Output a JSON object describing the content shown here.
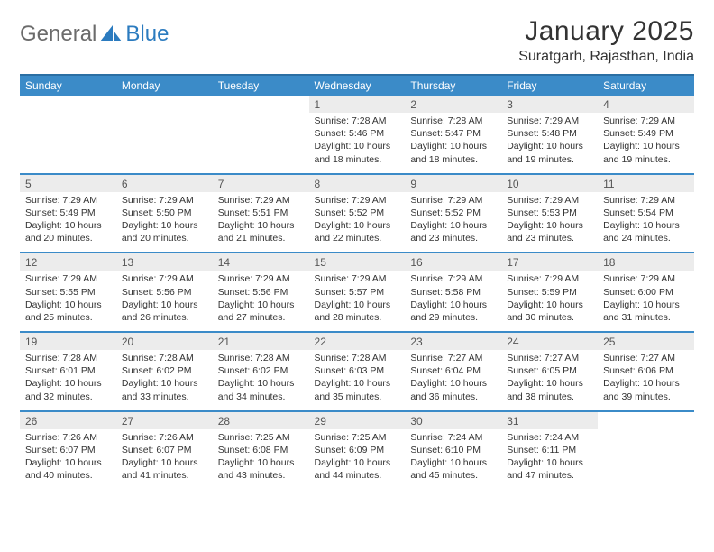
{
  "logo": {
    "word1": "General",
    "word2": "Blue",
    "shape_color": "#2b7bbf"
  },
  "title": "January 2025",
  "location": "Suratgarh, Rajasthan, India",
  "colors": {
    "header_bg": "#3b8bc8",
    "header_border": "#2b6fa3",
    "daynum_bg": "#ececec",
    "text": "#333333"
  },
  "day_headers": [
    "Sunday",
    "Monday",
    "Tuesday",
    "Wednesday",
    "Thursday",
    "Friday",
    "Saturday"
  ],
  "weeks": [
    [
      null,
      null,
      null,
      {
        "n": "1",
        "sr": "Sunrise: 7:28 AM",
        "ss": "Sunset: 5:46 PM",
        "d1": "Daylight: 10 hours",
        "d2": "and 18 minutes."
      },
      {
        "n": "2",
        "sr": "Sunrise: 7:28 AM",
        "ss": "Sunset: 5:47 PM",
        "d1": "Daylight: 10 hours",
        "d2": "and 18 minutes."
      },
      {
        "n": "3",
        "sr": "Sunrise: 7:29 AM",
        "ss": "Sunset: 5:48 PM",
        "d1": "Daylight: 10 hours",
        "d2": "and 19 minutes."
      },
      {
        "n": "4",
        "sr": "Sunrise: 7:29 AM",
        "ss": "Sunset: 5:49 PM",
        "d1": "Daylight: 10 hours",
        "d2": "and 19 minutes."
      }
    ],
    [
      {
        "n": "5",
        "sr": "Sunrise: 7:29 AM",
        "ss": "Sunset: 5:49 PM",
        "d1": "Daylight: 10 hours",
        "d2": "and 20 minutes."
      },
      {
        "n": "6",
        "sr": "Sunrise: 7:29 AM",
        "ss": "Sunset: 5:50 PM",
        "d1": "Daylight: 10 hours",
        "d2": "and 20 minutes."
      },
      {
        "n": "7",
        "sr": "Sunrise: 7:29 AM",
        "ss": "Sunset: 5:51 PM",
        "d1": "Daylight: 10 hours",
        "d2": "and 21 minutes."
      },
      {
        "n": "8",
        "sr": "Sunrise: 7:29 AM",
        "ss": "Sunset: 5:52 PM",
        "d1": "Daylight: 10 hours",
        "d2": "and 22 minutes."
      },
      {
        "n": "9",
        "sr": "Sunrise: 7:29 AM",
        "ss": "Sunset: 5:52 PM",
        "d1": "Daylight: 10 hours",
        "d2": "and 23 minutes."
      },
      {
        "n": "10",
        "sr": "Sunrise: 7:29 AM",
        "ss": "Sunset: 5:53 PM",
        "d1": "Daylight: 10 hours",
        "d2": "and 23 minutes."
      },
      {
        "n": "11",
        "sr": "Sunrise: 7:29 AM",
        "ss": "Sunset: 5:54 PM",
        "d1": "Daylight: 10 hours",
        "d2": "and 24 minutes."
      }
    ],
    [
      {
        "n": "12",
        "sr": "Sunrise: 7:29 AM",
        "ss": "Sunset: 5:55 PM",
        "d1": "Daylight: 10 hours",
        "d2": "and 25 minutes."
      },
      {
        "n": "13",
        "sr": "Sunrise: 7:29 AM",
        "ss": "Sunset: 5:56 PM",
        "d1": "Daylight: 10 hours",
        "d2": "and 26 minutes."
      },
      {
        "n": "14",
        "sr": "Sunrise: 7:29 AM",
        "ss": "Sunset: 5:56 PM",
        "d1": "Daylight: 10 hours",
        "d2": "and 27 minutes."
      },
      {
        "n": "15",
        "sr": "Sunrise: 7:29 AM",
        "ss": "Sunset: 5:57 PM",
        "d1": "Daylight: 10 hours",
        "d2": "and 28 minutes."
      },
      {
        "n": "16",
        "sr": "Sunrise: 7:29 AM",
        "ss": "Sunset: 5:58 PM",
        "d1": "Daylight: 10 hours",
        "d2": "and 29 minutes."
      },
      {
        "n": "17",
        "sr": "Sunrise: 7:29 AM",
        "ss": "Sunset: 5:59 PM",
        "d1": "Daylight: 10 hours",
        "d2": "and 30 minutes."
      },
      {
        "n": "18",
        "sr": "Sunrise: 7:29 AM",
        "ss": "Sunset: 6:00 PM",
        "d1": "Daylight: 10 hours",
        "d2": "and 31 minutes."
      }
    ],
    [
      {
        "n": "19",
        "sr": "Sunrise: 7:28 AM",
        "ss": "Sunset: 6:01 PM",
        "d1": "Daylight: 10 hours",
        "d2": "and 32 minutes."
      },
      {
        "n": "20",
        "sr": "Sunrise: 7:28 AM",
        "ss": "Sunset: 6:02 PM",
        "d1": "Daylight: 10 hours",
        "d2": "and 33 minutes."
      },
      {
        "n": "21",
        "sr": "Sunrise: 7:28 AM",
        "ss": "Sunset: 6:02 PM",
        "d1": "Daylight: 10 hours",
        "d2": "and 34 minutes."
      },
      {
        "n": "22",
        "sr": "Sunrise: 7:28 AM",
        "ss": "Sunset: 6:03 PM",
        "d1": "Daylight: 10 hours",
        "d2": "and 35 minutes."
      },
      {
        "n": "23",
        "sr": "Sunrise: 7:27 AM",
        "ss": "Sunset: 6:04 PM",
        "d1": "Daylight: 10 hours",
        "d2": "and 36 minutes."
      },
      {
        "n": "24",
        "sr": "Sunrise: 7:27 AM",
        "ss": "Sunset: 6:05 PM",
        "d1": "Daylight: 10 hours",
        "d2": "and 38 minutes."
      },
      {
        "n": "25",
        "sr": "Sunrise: 7:27 AM",
        "ss": "Sunset: 6:06 PM",
        "d1": "Daylight: 10 hours",
        "d2": "and 39 minutes."
      }
    ],
    [
      {
        "n": "26",
        "sr": "Sunrise: 7:26 AM",
        "ss": "Sunset: 6:07 PM",
        "d1": "Daylight: 10 hours",
        "d2": "and 40 minutes."
      },
      {
        "n": "27",
        "sr": "Sunrise: 7:26 AM",
        "ss": "Sunset: 6:07 PM",
        "d1": "Daylight: 10 hours",
        "d2": "and 41 minutes."
      },
      {
        "n": "28",
        "sr": "Sunrise: 7:25 AM",
        "ss": "Sunset: 6:08 PM",
        "d1": "Daylight: 10 hours",
        "d2": "and 43 minutes."
      },
      {
        "n": "29",
        "sr": "Sunrise: 7:25 AM",
        "ss": "Sunset: 6:09 PM",
        "d1": "Daylight: 10 hours",
        "d2": "and 44 minutes."
      },
      {
        "n": "30",
        "sr": "Sunrise: 7:24 AM",
        "ss": "Sunset: 6:10 PM",
        "d1": "Daylight: 10 hours",
        "d2": "and 45 minutes."
      },
      {
        "n": "31",
        "sr": "Sunrise: 7:24 AM",
        "ss": "Sunset: 6:11 PM",
        "d1": "Daylight: 10 hours",
        "d2": "and 47 minutes."
      },
      null
    ]
  ]
}
